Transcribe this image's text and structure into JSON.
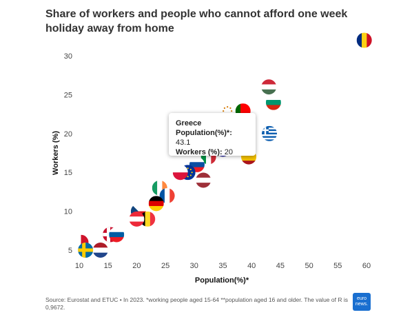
{
  "title": "Share of workers and people who cannot afford one week holiday away from home",
  "tooltip": {
    "country": "Greece",
    "population_label": "Population(%)*:",
    "population_value": "43.1",
    "workers_label": "Workers (%):",
    "workers_value": "20"
  },
  "source": "Source: Eurostat and ETUC • In 2023. *working people aged 15-64 **population aged 16 and older. The value of R is 0,9672.",
  "logo_text": "euro news.",
  "chart_data": {
    "type": "scatter",
    "title": "Share of workers and people who cannot afford one week holiday away from home",
    "xlabel": "Population(%)*",
    "ylabel": "Workers (%)",
    "xlim": [
      10,
      60
    ],
    "ylim": [
      4,
      32
    ],
    "xticks": [
      10,
      15,
      20,
      25,
      30,
      35,
      40,
      45,
      50,
      55,
      60
    ],
    "yticks": [
      5,
      10,
      15,
      20,
      25,
      30
    ],
    "grid": false,
    "points": [
      {
        "flag": "RO",
        "x": 59.6,
        "y": 32.0
      },
      {
        "flag": "HU",
        "x": 43.0,
        "y": 26.0
      },
      {
        "flag": "BG",
        "x": 43.8,
        "y": 24.0
      },
      {
        "flag": "CY",
        "x": 35.8,
        "y": 22.9
      },
      {
        "flag": "PT",
        "x": 38.5,
        "y": 22.9
      },
      {
        "flag": "GR",
        "x": 43.1,
        "y": 20.0
      },
      {
        "flag": "ES",
        "x": 39.5,
        "y": 17.0
      },
      {
        "flag": "HR",
        "x": 35.0,
        "y": 18.0
      },
      {
        "flag": "IT",
        "x": 32.5,
        "y": 17.0
      },
      {
        "flag": "SK",
        "x": 30.5,
        "y": 16.0
      },
      {
        "flag": "EU",
        "x": 28.9,
        "y": 15.0
      },
      {
        "flag": "PL",
        "x": 27.6,
        "y": 15.0
      },
      {
        "flag": "LV",
        "x": 31.6,
        "y": 14.0
      },
      {
        "flag": "IE",
        "x": 24.0,
        "y": 13.0
      },
      {
        "flag": "FR",
        "x": 25.3,
        "y": 12.0
      },
      {
        "flag": "DE",
        "x": 23.4,
        "y": 11.0
      },
      {
        "flag": "CZ",
        "x": 20.3,
        "y": 10.0
      },
      {
        "flag": "BE",
        "x": 21.9,
        "y": 9.0
      },
      {
        "flag": "AT",
        "x": 20.0,
        "y": 9.0
      },
      {
        "flag": "DK",
        "x": 15.4,
        "y": 7.0
      },
      {
        "flag": "SI",
        "x": 16.5,
        "y": 7.0
      },
      {
        "flag": "MT",
        "x": 10.3,
        "y": 6.0
      },
      {
        "flag": "NL",
        "x": 13.7,
        "y": 5.0
      },
      {
        "flag": "SE",
        "x": 11.1,
        "y": 5.0
      }
    ]
  }
}
